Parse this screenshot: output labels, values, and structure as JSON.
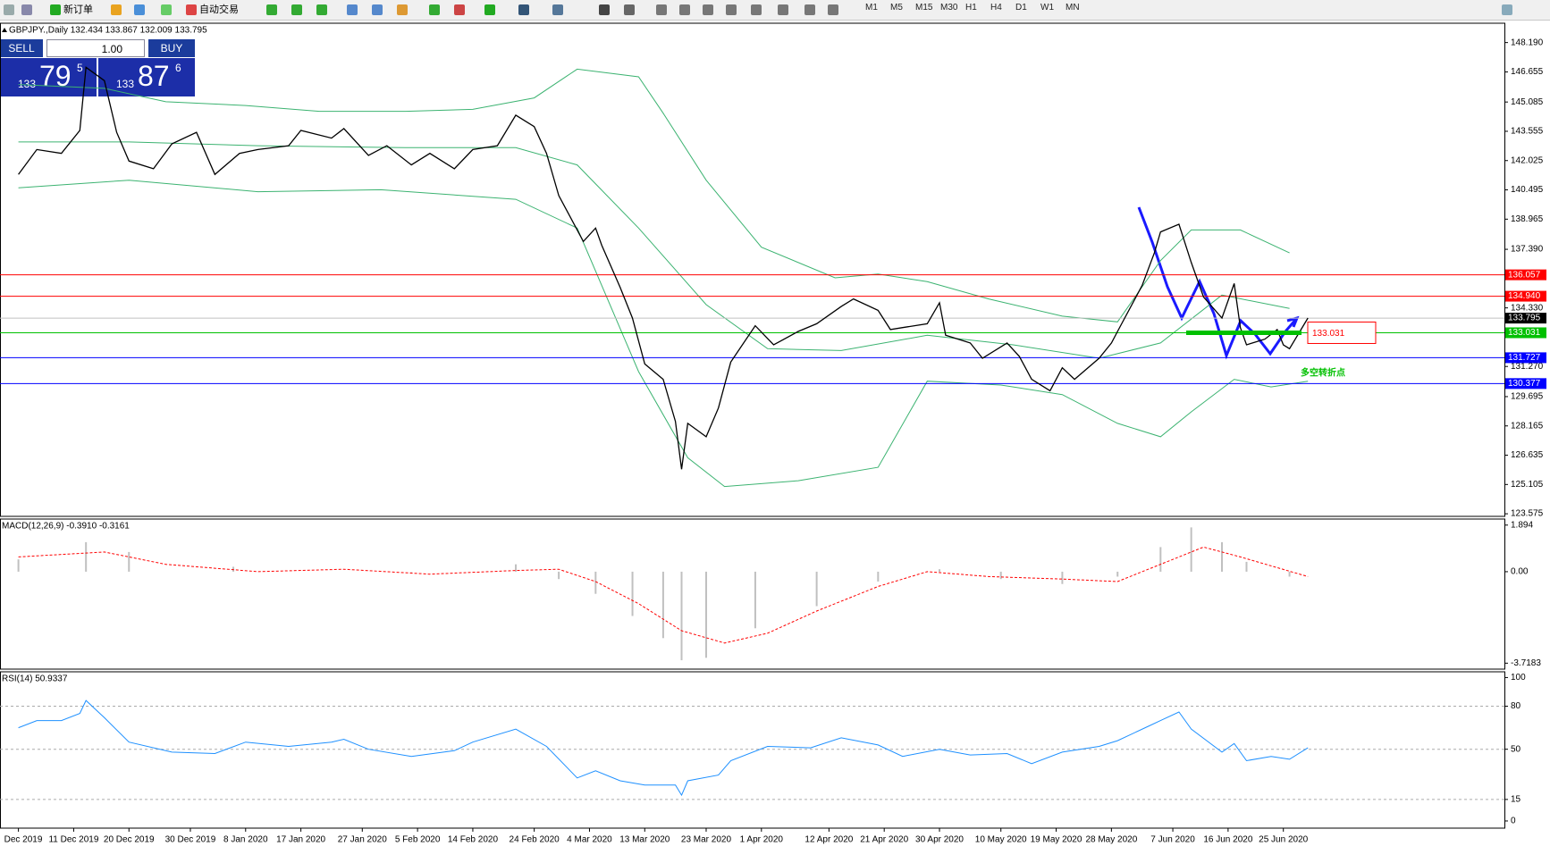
{
  "toolbar": {
    "buttons": [
      "新订单",
      "自动交易"
    ],
    "timeframes": [
      "M1",
      "M5",
      "M15",
      "M30",
      "H1",
      "H4",
      "D1",
      "W1",
      "MN"
    ]
  },
  "trade_panel": {
    "sell": "SELL",
    "lots": "1.00",
    "buy": "BUY",
    "sell_price": {
      "big": "133",
      "main": "79",
      "pip": "5"
    },
    "buy_price": {
      "big": "133",
      "main": "87",
      "pip": "6"
    }
  },
  "chart_data": [
    {
      "type": "line",
      "title": "GBPJPY.,Daily 132.434 133.867 132.009 133.795",
      "color": "#000000",
      "xlim": [
        "2019-11-29",
        "2020-07-31"
      ],
      "ylim": [
        123.44,
        149.2
      ],
      "yticks": [
        {
          "value": 148.19,
          "label": "148.190"
        },
        146.655,
        145.085,
        143.555,
        142.025,
        140.495,
        138.965,
        {
          "value": 137.39,
          "label": "137.390"
        },
        {
          "value": 134.33,
          "label": "134.330"
        },
        {
          "value": 131.27,
          "label": "131.270"
        },
        129.695,
        128.165,
        126.635,
        125.105,
        123.575
      ],
      "x": [
        "2019-12-02",
        "2019-12-05",
        "2019-12-09",
        "2019-12-12",
        "2019-12-13",
        "2019-12-16",
        "2019-12-18",
        "2019-12-20",
        "2019-12-24",
        "2019-12-27",
        "2019-12-31",
        "2020-01-03",
        "2020-01-07",
        "2020-01-10",
        "2020-01-15",
        "2020-01-17",
        "2020-01-22",
        "2020-01-24",
        "2020-01-28",
        "2020-01-31",
        "2020-02-04",
        "2020-02-07",
        "2020-02-11",
        "2020-02-14",
        "2020-02-18",
        "2020-02-21",
        "2020-02-24",
        "2020-02-26",
        "2020-02-28",
        "2020-03-03",
        "2020-03-05",
        "2020-03-06",
        "2020-03-09",
        "2020-03-11",
        "2020-03-13",
        "2020-03-16",
        "2020-03-18",
        "2020-03-19",
        "2020-03-20",
        "2020-03-23",
        "2020-03-25",
        "2020-03-27",
        "2020-03-31",
        "2020-04-03",
        "2020-04-07",
        "2020-04-10",
        "2020-04-14",
        "2020-04-16",
        "2020-04-20",
        "2020-04-22",
        "2020-04-24",
        "2020-04-28",
        "2020-04-30",
        "2020-05-01",
        "2020-05-05",
        "2020-05-07",
        "2020-05-11",
        "2020-05-13",
        "2020-05-15",
        "2020-05-18",
        "2020-05-20",
        "2020-05-22",
        "2020-05-26",
        "2020-05-28",
        "2020-05-29",
        "2020-06-02",
        "2020-06-04",
        "2020-06-05",
        "2020-06-08",
        "2020-06-10",
        "2020-06-12",
        "2020-06-15",
        "2020-06-17",
        "2020-06-18",
        "2020-06-19",
        "2020-06-22",
        "2020-06-24",
        "2020-06-25",
        "2020-06-26",
        "2020-06-29"
      ],
      "values": [
        141.3,
        142.6,
        142.4,
        143.6,
        146.9,
        146.2,
        143.5,
        142.0,
        141.6,
        142.9,
        143.5,
        141.3,
        142.4,
        142.6,
        142.8,
        143.6,
        143.2,
        143.7,
        142.3,
        142.8,
        141.8,
        142.4,
        141.6,
        142.6,
        142.8,
        144.4,
        143.8,
        142.4,
        140.2,
        137.8,
        138.5,
        137.6,
        135.4,
        133.8,
        131.4,
        130.6,
        128.4,
        125.9,
        128.3,
        127.6,
        129.1,
        131.5,
        133.4,
        132.4,
        133.1,
        133.5,
        134.4,
        134.8,
        134.2,
        133.2,
        133.3,
        133.5,
        134.6,
        132.9,
        132.5,
        131.7,
        132.5,
        131.8,
        130.6,
        130.0,
        131.2,
        130.6,
        131.7,
        132.5,
        133.1,
        135.5,
        137.2,
        138.3,
        138.7,
        136.7,
        134.9,
        133.8,
        135.6,
        133.3,
        132.4,
        132.7,
        133.2,
        132.4,
        132.2,
        133.8
      ],
      "bands": [
        {
          "color": "#3cb371",
          "x": [
            "2019-12-02",
            "2019-12-16",
            "2019-12-26",
            "2020-01-08",
            "2020-01-20",
            "2020-02-03",
            "2020-02-14",
            "2020-02-24",
            "2020-03-02",
            "2020-03-12",
            "2020-03-16",
            "2020-03-23",
            "2020-04-01",
            "2020-04-13",
            "2020-04-20",
            "2020-04-28",
            "2020-05-08",
            "2020-05-20",
            "2020-05-29",
            "2020-06-05",
            "2020-06-10",
            "2020-06-18",
            "2020-06-26"
          ],
          "values": [
            146.0,
            145.8,
            145.1,
            144.9,
            144.6,
            144.6,
            144.7,
            145.3,
            146.8,
            146.4,
            144.5,
            141.0,
            137.5,
            135.9,
            136.1,
            135.7,
            134.8,
            133.9,
            133.6,
            136.8,
            138.4,
            138.4,
            137.2
          ]
        },
        {
          "color": "#3cb371",
          "x": [
            "2019-12-02",
            "2019-12-20",
            "2020-01-10",
            "2020-02-03",
            "2020-02-21",
            "2020-03-02",
            "2020-03-12",
            "2020-03-23",
            "2020-04-02",
            "2020-04-14",
            "2020-04-28",
            "2020-05-12",
            "2020-05-26",
            "2020-06-05",
            "2020-06-15",
            "2020-06-26"
          ],
          "values": [
            143.0,
            143.0,
            142.8,
            142.7,
            142.7,
            141.8,
            138.5,
            134.5,
            132.2,
            132.1,
            132.9,
            132.4,
            131.7,
            132.5,
            135.0,
            134.3
          ]
        },
        {
          "color": "#3cb371",
          "x": [
            "2019-12-02",
            "2019-12-20",
            "2020-01-10",
            "2020-01-30",
            "2020-02-21",
            "2020-03-02",
            "2020-03-12",
            "2020-03-20",
            "2020-03-26",
            "2020-04-07",
            "2020-04-20",
            "2020-04-28",
            "2020-05-10",
            "2020-05-20",
            "2020-05-29",
            "2020-06-05",
            "2020-06-10",
            "2020-06-17",
            "2020-06-23",
            "2020-06-29"
          ],
          "values": [
            140.6,
            141.0,
            140.4,
            140.5,
            140.0,
            138.5,
            131.0,
            126.5,
            125.0,
            125.3,
            126.0,
            130.5,
            130.3,
            129.8,
            128.3,
            127.6,
            128.9,
            130.6,
            130.2,
            130.5
          ]
        }
      ],
      "hlines": [
        {
          "value": 136.057,
          "color": "#ff0000"
        },
        {
          "value": 134.94,
          "label": "134.940",
          "color": "#ff0000"
        },
        {
          "value": 133.795,
          "color": "#c0c0c0",
          "label_color": "#000000"
        },
        {
          "value": 133.031,
          "color": "#00c000"
        },
        {
          "value": 131.727,
          "color": "#0000ff"
        },
        {
          "value": 130.377,
          "color": "#0000ff"
        }
      ],
      "annotations": [
        {
          "text": "133.031",
          "color": "#ff0000"
        },
        {
          "text": "多空转折点",
          "color": "#00c000"
        }
      ]
    },
    {
      "type": "macd",
      "title": "MACD(12,26,9) -0.3910 -0.3161",
      "xlim": [
        "2019-11-29",
        "2020-07-31"
      ],
      "ylim": [
        -3.96,
        2.14
      ],
      "yticks": [
        1.894,
        {
          "value": 0,
          "label": "0.00"
        },
        -3.7183
      ],
      "histogram": {
        "color": "#c0c0c0",
        "x": [
          "2019-12-02",
          "2019-12-13",
          "2019-12-20",
          "2020-01-06",
          "2020-02-04",
          "2020-02-21",
          "2020-02-28",
          "2020-03-05",
          "2020-03-11",
          "2020-03-16",
          "2020-03-19",
          "2020-03-23",
          "2020-03-31",
          "2020-04-10",
          "2020-04-20",
          "2020-04-30",
          "2020-05-10",
          "2020-05-20",
          "2020-05-29",
          "2020-06-05",
          "2020-06-10",
          "2020-06-15",
          "2020-06-19",
          "2020-06-26"
        ],
        "values": [
          0.5,
          1.2,
          0.8,
          0.2,
          0.0,
          0.3,
          -0.3,
          -0.9,
          -1.8,
          -2.7,
          -3.6,
          -3.5,
          -2.3,
          -1.4,
          -0.4,
          0.1,
          -0.3,
          -0.5,
          -0.2,
          1.0,
          1.8,
          1.2,
          0.4,
          -0.2
        ]
      },
      "signal": {
        "color": "#ff0000",
        "x": [
          "2019-12-02",
          "2019-12-16",
          "2019-12-26",
          "2020-01-10",
          "2020-01-24",
          "2020-02-07",
          "2020-02-21",
          "2020-02-28",
          "2020-03-05",
          "2020-03-12",
          "2020-03-19",
          "2020-03-26",
          "2020-04-02",
          "2020-04-10",
          "2020-04-20",
          "2020-04-28",
          "2020-05-08",
          "2020-05-20",
          "2020-05-29",
          "2020-06-05",
          "2020-06-12",
          "2020-06-18",
          "2020-06-29"
        ],
        "values": [
          0.6,
          0.8,
          0.3,
          0.0,
          0.1,
          -0.1,
          0.05,
          0.1,
          -0.4,
          -1.3,
          -2.4,
          -2.9,
          -2.5,
          -1.6,
          -0.6,
          0.0,
          -0.2,
          -0.3,
          -0.4,
          0.3,
          1.0,
          0.6,
          -0.2
        ]
      }
    },
    {
      "type": "line",
      "title": "RSI(14) 50.9337",
      "color": "#1e90ff",
      "grid": true,
      "xlim": [
        "2019-11-29",
        "2020-07-31"
      ],
      "ylim": [
        -5,
        104
      ],
      "yticks": [
        100,
        80,
        50,
        15,
        0
      ],
      "x": [
        "2019-12-02",
        "2019-12-05",
        "2019-12-09",
        "2019-12-12",
        "2019-12-13",
        "2019-12-16",
        "2019-12-20",
        "2019-12-27",
        "2020-01-03",
        "2020-01-08",
        "2020-01-15",
        "2020-01-22",
        "2020-01-24",
        "2020-01-28",
        "2020-02-04",
        "2020-02-11",
        "2020-02-14",
        "2020-02-21",
        "2020-02-26",
        "2020-03-02",
        "2020-03-05",
        "2020-03-09",
        "2020-03-13",
        "2020-03-18",
        "2020-03-19",
        "2020-03-20",
        "2020-03-25",
        "2020-03-27",
        "2020-04-02",
        "2020-04-09",
        "2020-04-14",
        "2020-04-20",
        "2020-04-24",
        "2020-04-30",
        "2020-05-05",
        "2020-05-11",
        "2020-05-15",
        "2020-05-20",
        "2020-05-26",
        "2020-05-29",
        "2020-06-03",
        "2020-06-05",
        "2020-06-08",
        "2020-06-10",
        "2020-06-15",
        "2020-06-17",
        "2020-06-19",
        "2020-06-23",
        "2020-06-26",
        "2020-06-29"
      ],
      "values": [
        65,
        70,
        70,
        75,
        84,
        72,
        55,
        48,
        47,
        55,
        52,
        55,
        57,
        50,
        45,
        49,
        55,
        64,
        52,
        30,
        35,
        28,
        25,
        25,
        18,
        28,
        32,
        42,
        52,
        51,
        58,
        53,
        45,
        50,
        46,
        47,
        40,
        48,
        52,
        56,
        66,
        70,
        76,
        64,
        48,
        54,
        42,
        45,
        43,
        51
      ],
      "xticks": [
        {
          "value": "2019-12-02",
          "label": "Dec 2019"
        },
        {
          "value": "2019-12-11",
          "label": "11 Dec 2019"
        },
        {
          "value": "2019-12-20",
          "label": "20 Dec 2019"
        },
        {
          "value": "2019-12-30",
          "label": "30 Dec 2019"
        },
        {
          "value": "2020-01-08",
          "label": "8 Jan 2020"
        },
        {
          "value": "2020-01-17",
          "label": "17 Jan 2020"
        },
        {
          "value": "2020-01-27",
          "label": "27 Jan 2020"
        },
        {
          "value": "2020-02-05",
          "label": "5 Feb 2020"
        },
        {
          "value": "2020-02-14",
          "label": "14 Feb 2020"
        },
        {
          "value": "2020-02-24",
          "label": "24 Feb 2020"
        },
        {
          "value": "2020-03-04",
          "label": "4 Mar 2020"
        },
        {
          "value": "2020-03-13",
          "label": "13 Mar 2020"
        },
        {
          "value": "2020-03-23",
          "label": "23 Mar 2020"
        },
        {
          "value": "2020-04-01",
          "label": "1 Apr 2020"
        },
        {
          "value": "2020-04-12",
          "label": "12 Apr 2020"
        },
        {
          "value": "2020-04-21",
          "label": "21 Apr 2020"
        },
        {
          "value": "2020-04-30",
          "label": "30 Apr 2020"
        },
        {
          "value": "2020-05-10",
          "label": "10 May 2020"
        },
        {
          "value": "2020-05-19",
          "label": "19 May 2020"
        },
        {
          "value": "2020-05-28",
          "label": "28 May 2020"
        },
        {
          "value": "2020-06-07",
          "label": "7 Jun 2020"
        },
        {
          "value": "2020-06-16",
          "label": "16 Jun 2020"
        },
        {
          "value": "2020-06-25",
          "label": "25 Jun 2020"
        }
      ]
    }
  ]
}
